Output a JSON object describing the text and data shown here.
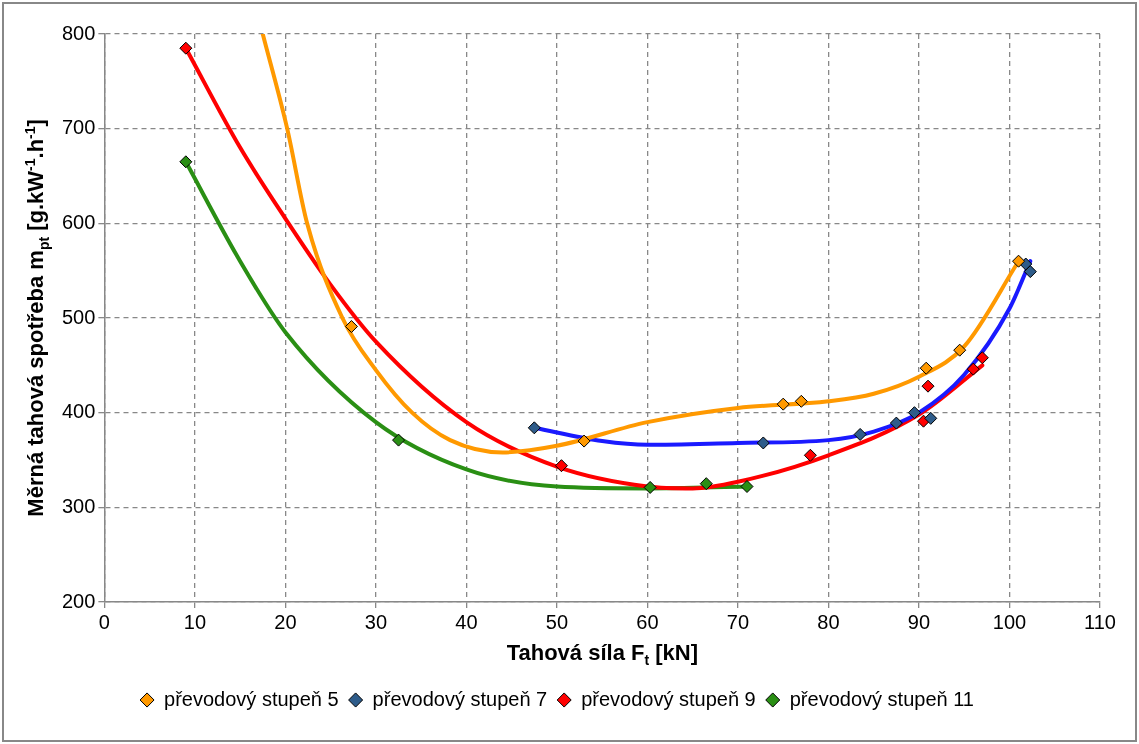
{
  "chart_data": {
    "type": "scatter",
    "xlabel": "Tahová síla F$_{t}$ [kN]",
    "ylabel": "Měrná tahová spotřeba m$_{pt}$ [g.kW$^{-1}$.h$^{-1}$]",
    "xlim": [
      0,
      110
    ],
    "xticks": [
      0,
      10,
      20,
      30,
      40,
      50,
      60,
      70,
      80,
      90,
      100,
      110
    ],
    "ylim": [
      200,
      800
    ],
    "yticks": [
      200,
      300,
      400,
      500,
      600,
      700,
      800
    ],
    "grid": true,
    "legend": "bottom",
    "marker": "diamond",
    "series": [
      {
        "type": "scatter",
        "name": "převodový stupeň 5",
        "color": "#ff9900",
        "x": [
          27.3,
          53,
          75,
          77,
          90.8,
          94.5,
          101
        ],
        "values": [
          491,
          370,
          409,
          412,
          447,
          466,
          560
        ]
      },
      {
        "type": "scatter",
        "name": "převodový stupeň 7",
        "color": "#2e5c8a",
        "x": [
          47.5,
          72.8,
          83.5,
          87.5,
          89.5,
          91.3,
          101.8,
          102.3
        ],
        "values": [
          384,
          368,
          377,
          389,
          400,
          394,
          557,
          549
        ]
      },
      {
        "type": "scatter",
        "name": "převodový stupeň 9",
        "color": "#ff0000",
        "x": [
          9,
          50.5,
          78,
          90.5,
          91,
          96,
          97
        ],
        "values": [
          785,
          344,
          355,
          391,
          428,
          446,
          458
        ]
      },
      {
        "type": "scatter",
        "name": "převodový stupeň 11",
        "color": "#2a8f14",
        "x": [
          9,
          32.5,
          60.3,
          66.5,
          71
        ],
        "values": [
          665,
          371,
          321,
          325,
          322
        ]
      },
      {
        "type": "line",
        "marker": "none",
        "color": "#ff9900",
        "x": [
          17.5,
          20.2,
          22.4,
          26.3,
          30,
          34,
          38.2,
          44,
          50,
          60,
          70,
          80,
          85,
          90,
          95,
          101
        ],
        "values": [
          800,
          700,
          600,
          500,
          445,
          400,
          371,
          358,
          365,
          390,
          405,
          412,
          420,
          438,
          470,
          560
        ]
      },
      {
        "type": "line",
        "marker": "none",
        "color": "#1a1aff",
        "x": [
          47.5,
          55,
          60,
          70,
          80,
          85,
          90,
          95,
          100,
          102.3
        ],
        "values": [
          384,
          370,
          366,
          368,
          371,
          380,
          400,
          440,
          510,
          560
        ]
      },
      {
        "type": "line",
        "marker": "none",
        "color": "#ff0000",
        "x": [
          9,
          15,
          20,
          25,
          30,
          40,
          50,
          60,
          65,
          70,
          80,
          90,
          97
        ],
        "values": [
          785,
          680,
          605,
          535,
          475,
          390,
          343,
          322,
          320,
          327,
          355,
          398,
          450
        ]
      },
      {
        "type": "line",
        "marker": "none",
        "color": "#2a8f14",
        "x": [
          9,
          15,
          20,
          30,
          40,
          50,
          60,
          71
        ],
        "values": [
          665,
          560,
          485,
          390,
          340,
          322,
          320,
          322
        ]
      }
    ]
  }
}
